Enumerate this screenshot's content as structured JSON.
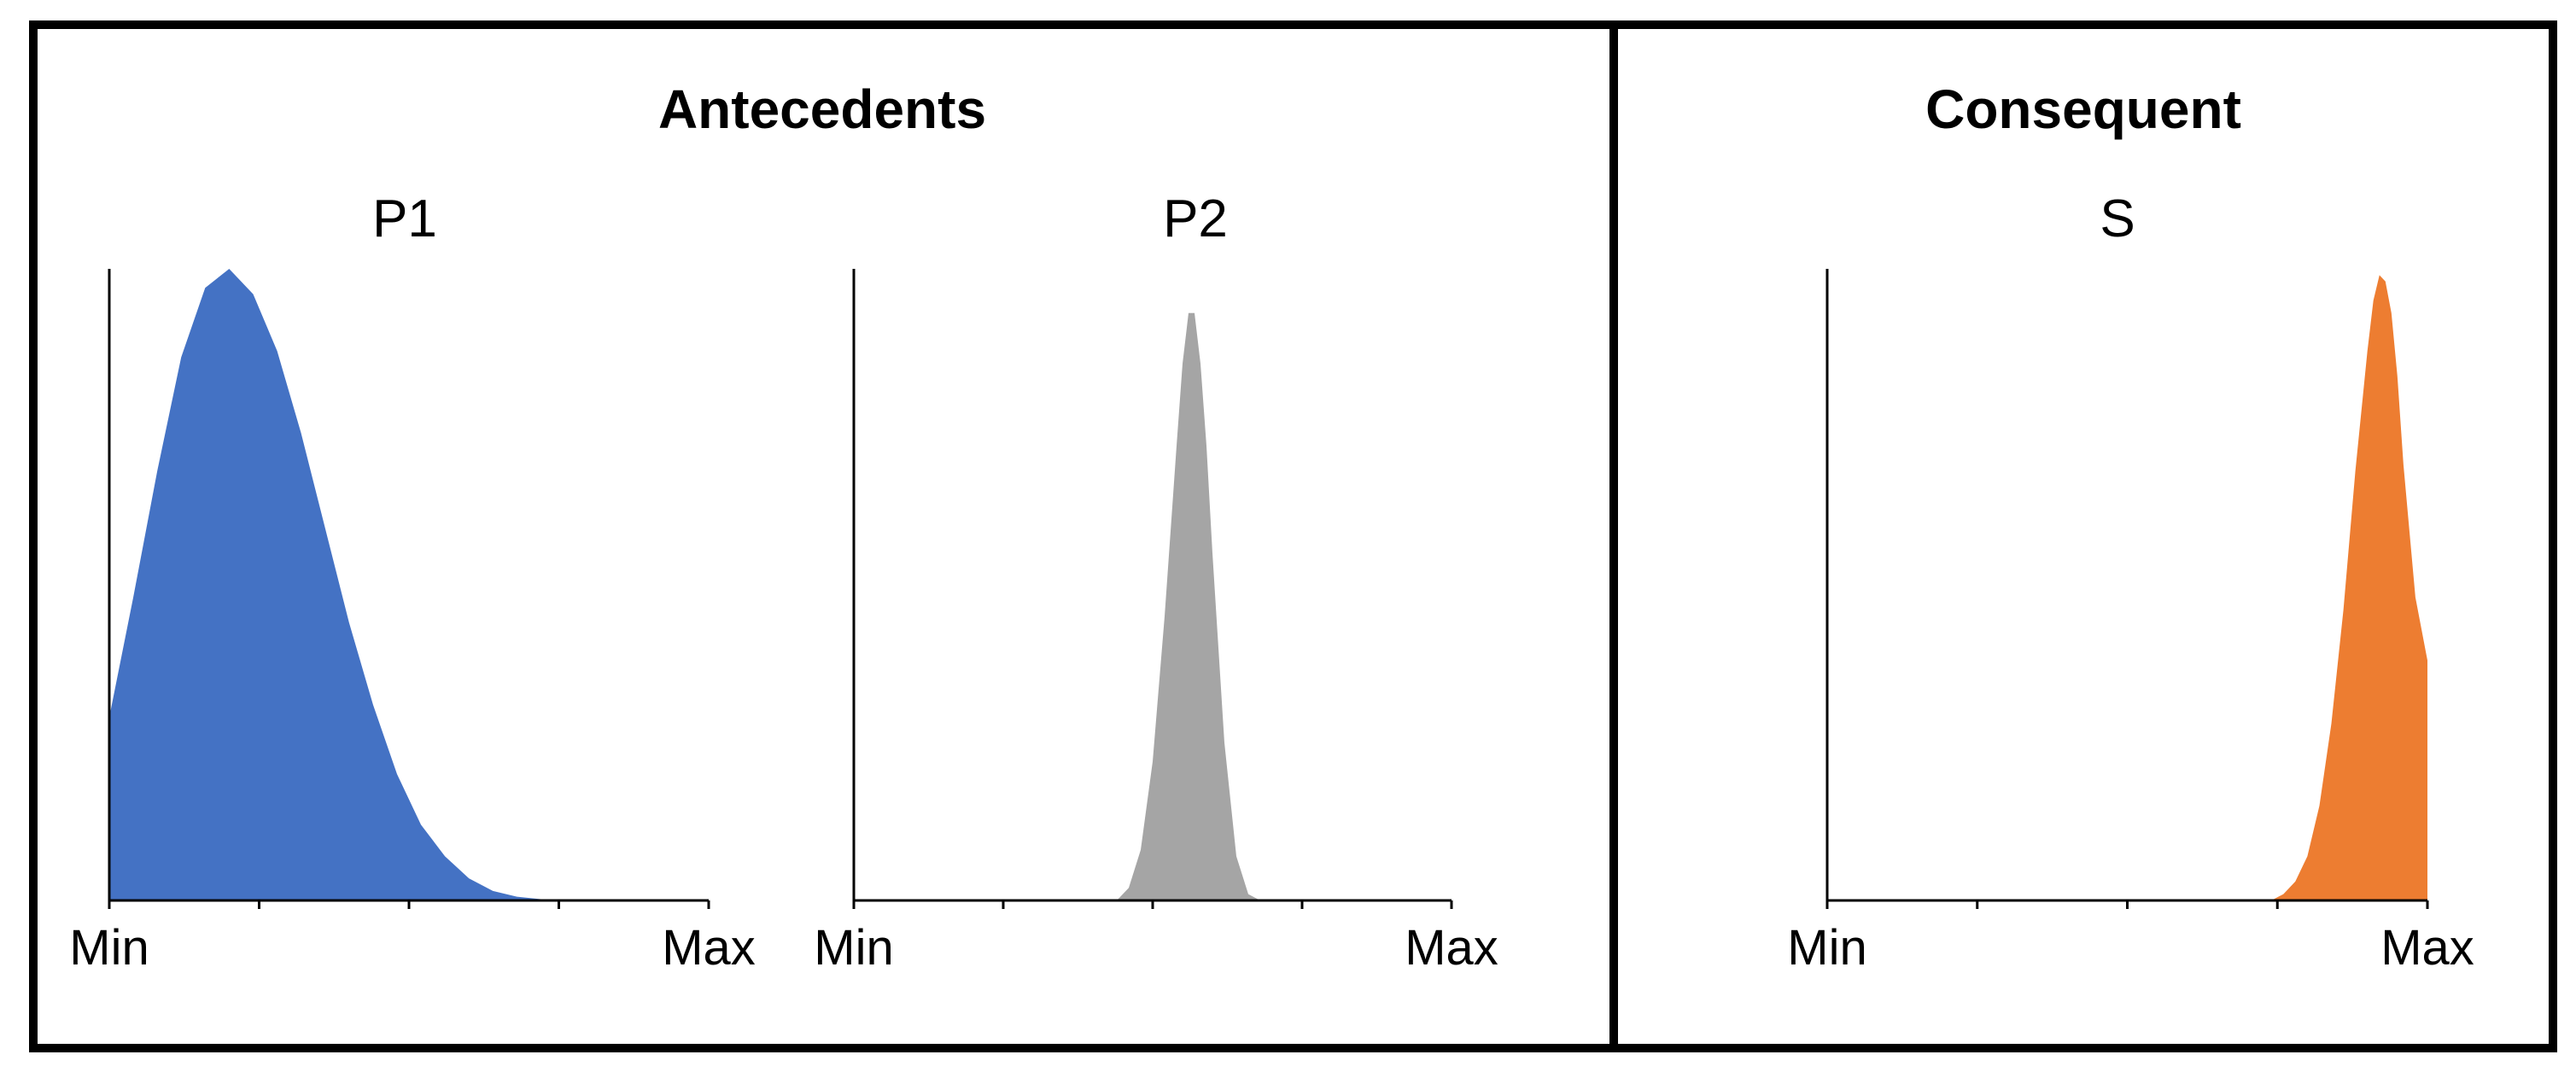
{
  "figure": {
    "left_panel_title": "Antecedents",
    "right_panel_title": "Consequent"
  },
  "chart_data": [
    {
      "type": "area",
      "title": "P1",
      "xlabel": "",
      "ylabel": "",
      "x_tick_labels": [
        "Min",
        "Max"
      ],
      "xlim": [
        0,
        1
      ],
      "ylim": [
        0,
        1
      ],
      "color": "#4472C4",
      "x": [
        0.0,
        0.04,
        0.08,
        0.12,
        0.16,
        0.2,
        0.24,
        0.28,
        0.32,
        0.36,
        0.4,
        0.44,
        0.48,
        0.52,
        0.56,
        0.6,
        0.64,
        0.68,
        0.72,
        0.76,
        0.8,
        0.84,
        0.88,
        0.92,
        0.96,
        1.0
      ],
      "y": [
        0.29,
        0.48,
        0.68,
        0.86,
        0.97,
        1.0,
        0.96,
        0.87,
        0.74,
        0.59,
        0.44,
        0.31,
        0.2,
        0.12,
        0.07,
        0.035,
        0.015,
        0.006,
        0.002,
        0.0,
        0.0,
        0.0,
        0.0,
        0.0,
        0.0,
        0.0
      ]
    },
    {
      "type": "area",
      "title": "P2",
      "xlabel": "",
      "ylabel": "",
      "x_tick_labels": [
        "Min",
        "Max"
      ],
      "xlim": [
        0,
        1
      ],
      "ylim": [
        0,
        1
      ],
      "color": "#A5A5A5",
      "x": [
        0.0,
        0.44,
        0.46,
        0.48,
        0.5,
        0.52,
        0.54,
        0.55,
        0.56,
        0.57,
        0.58,
        0.59,
        0.6,
        0.62,
        0.64,
        0.66,
        0.68,
        1.0
      ],
      "y": [
        0.0,
        0.0,
        0.02,
        0.08,
        0.22,
        0.45,
        0.72,
        0.85,
        0.93,
        0.93,
        0.85,
        0.72,
        0.55,
        0.25,
        0.07,
        0.01,
        0.0,
        0.0
      ]
    },
    {
      "type": "area",
      "title": "S",
      "xlabel": "",
      "ylabel": "",
      "x_tick_labels": [
        "Min",
        "Max"
      ],
      "xlim": [
        0,
        1
      ],
      "ylim": [
        0,
        1
      ],
      "color": "#ED7D31",
      "x": [
        0.0,
        0.74,
        0.76,
        0.78,
        0.8,
        0.82,
        0.84,
        0.86,
        0.88,
        0.9,
        0.91,
        0.92,
        0.93,
        0.94,
        0.95,
        0.96,
        0.98,
        1.0
      ],
      "y": [
        0.0,
        0.0,
        0.01,
        0.03,
        0.07,
        0.15,
        0.28,
        0.46,
        0.68,
        0.87,
        0.95,
        0.99,
        0.98,
        0.93,
        0.83,
        0.69,
        0.48,
        0.38
      ]
    }
  ]
}
